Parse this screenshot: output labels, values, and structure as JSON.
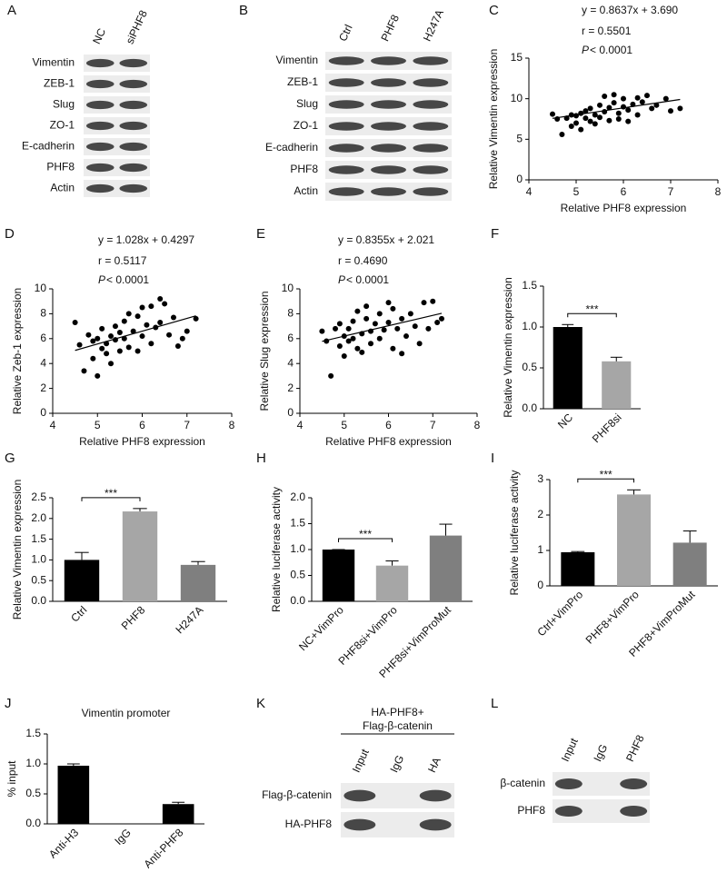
{
  "chart_data": [
    {
      "type": "scatter",
      "panel": "C",
      "equation": "y = 0.8637x + 3.690",
      "r_label": "r = 0.5501",
      "p_label": "P",
      "p_value": "< 0.0001",
      "fit": {
        "slope": 0.8637,
        "intercept": 3.69
      },
      "x_label": "Relative PHF8 expression",
      "y_label": "Relative Vimentin expression",
      "xlim": [
        4,
        8
      ],
      "xticks": [
        4,
        5,
        6,
        7,
        8
      ],
      "ylim": [
        0,
        15
      ],
      "yticks": [
        0,
        5,
        10,
        15
      ],
      "color": "#000000",
      "x": [
        4.5,
        4.6,
        4.7,
        4.8,
        4.9,
        4.9,
        5.0,
        5.0,
        5.1,
        5.1,
        5.2,
        5.2,
        5.3,
        5.3,
        5.4,
        5.4,
        5.5,
        5.5,
        5.6,
        5.6,
        5.7,
        5.7,
        5.8,
        5.8,
        5.9,
        5.9,
        6.0,
        6.0,
        6.1,
        6.1,
        6.2,
        6.3,
        6.3,
        6.4,
        6.5,
        6.6,
        6.7,
        6.9,
        7.0,
        7.2
      ],
      "values": [
        8.1,
        7.5,
        5.6,
        7.6,
        8.0,
        6.6,
        7.9,
        7.0,
        8.2,
        6.2,
        7.6,
        8.5,
        7.2,
        8.8,
        6.9,
        8.0,
        7.7,
        9.2,
        8.4,
        10.3,
        7.3,
        8.9,
        9.5,
        10.5,
        8.2,
        7.5,
        9.0,
        10.0,
        8.6,
        7.2,
        9.3,
        10.1,
        8.0,
        9.6,
        10.4,
        8.8,
        9.2,
        10.0,
        8.5,
        8.8
      ]
    },
    {
      "type": "scatter",
      "panel": "D",
      "equation": "y = 1.028x + 0.4297",
      "r_label": "r = 0.5117",
      "p_label": "P",
      "p_value": "< 0.0001",
      "fit": {
        "slope": 1.028,
        "intercept": 0.4297
      },
      "x_label": "Relative PHF8 expression",
      "y_label": "Relative Zeb-1 expression",
      "xlim": [
        4,
        8
      ],
      "xticks": [
        4,
        5,
        6,
        7,
        8
      ],
      "ylim": [
        0,
        10
      ],
      "yticks": [
        0,
        2,
        4,
        6,
        8,
        10
      ],
      "color": "#000000",
      "x": [
        4.5,
        4.6,
        4.7,
        4.8,
        4.9,
        4.9,
        5.0,
        5.0,
        5.1,
        5.1,
        5.2,
        5.2,
        5.3,
        5.3,
        5.4,
        5.4,
        5.5,
        5.5,
        5.6,
        5.6,
        5.7,
        5.7,
        5.8,
        5.9,
        5.9,
        6.0,
        6.0,
        6.1,
        6.2,
        6.2,
        6.3,
        6.4,
        6.4,
        6.5,
        6.6,
        6.7,
        6.8,
        6.9,
        7.0,
        7.2
      ],
      "values": [
        7.3,
        5.5,
        3.4,
        6.3,
        5.8,
        4.4,
        6.0,
        3.0,
        5.2,
        6.8,
        4.8,
        5.6,
        6.2,
        4.0,
        7.0,
        5.9,
        6.5,
        5.0,
        7.4,
        6.0,
        8.0,
        5.3,
        6.6,
        7.8,
        5.0,
        8.5,
        6.2,
        7.1,
        8.6,
        5.6,
        6.9,
        9.2,
        7.3,
        8.8,
        6.3,
        7.7,
        5.4,
        6.0,
        6.6,
        7.6
      ]
    },
    {
      "type": "scatter",
      "panel": "E",
      "equation": "y = 0.8355x + 2.021",
      "r_label": "r = 0.4690",
      "p_label": "P",
      "p_value": "< 0.0001",
      "fit": {
        "slope": 0.8355,
        "intercept": 2.021
      },
      "x_label": "Relative PHF8 expression",
      "y_label": "Relative Slug expression",
      "xlim": [
        4,
        8
      ],
      "xticks": [
        4,
        5,
        6,
        7,
        8
      ],
      "ylim": [
        0,
        10
      ],
      "yticks": [
        0,
        2,
        4,
        6,
        8,
        10
      ],
      "color": "#000000",
      "x": [
        4.5,
        4.6,
        4.7,
        4.8,
        4.9,
        4.9,
        5.0,
        5.0,
        5.1,
        5.1,
        5.2,
        5.2,
        5.3,
        5.3,
        5.4,
        5.4,
        5.5,
        5.5,
        5.6,
        5.6,
        5.7,
        5.8,
        5.8,
        5.9,
        6.0,
        6.0,
        6.1,
        6.1,
        6.2,
        6.3,
        6.3,
        6.4,
        6.5,
        6.6,
        6.7,
        6.8,
        6.9,
        7.0,
        7.1,
        7.2
      ],
      "values": [
        6.6,
        5.8,
        3.0,
        6.8,
        5.4,
        7.2,
        6.2,
        4.6,
        6.8,
        5.8,
        7.4,
        6.0,
        5.2,
        8.2,
        6.4,
        4.9,
        7.6,
        8.6,
        6.6,
        5.6,
        7.2,
        6.0,
        8.0,
        6.7,
        8.9,
        7.3,
        5.2,
        8.4,
        6.8,
        7.6,
        4.8,
        6.2,
        8.0,
        7.0,
        5.6,
        8.9,
        6.8,
        9.0,
        7.3,
        7.6
      ]
    },
    {
      "type": "bar",
      "panel": "F",
      "y_label": "Relative Vimentin expression",
      "categories": [
        "NC",
        "PHF8si"
      ],
      "values": [
        1.0,
        0.58
      ],
      "errors": [
        0.03,
        0.05
      ],
      "colors": [
        "#000000",
        "#a6a6a6"
      ],
      "significance": "***",
      "ylim": [
        0,
        1.5
      ],
      "yticks": [
        {
          "value": 0,
          "label": "0.0"
        },
        {
          "value": 0.5,
          "label": "0.5"
        },
        {
          "value": 1,
          "label": "1.0"
        },
        {
          "value": 1.5,
          "label": "1.5"
        }
      ]
    },
    {
      "type": "bar",
      "panel": "G",
      "y_label": "Relative Vimentin expression",
      "categories": [
        "Ctrl",
        "PHF8",
        "H247A"
      ],
      "values": [
        1.0,
        2.17,
        0.88
      ],
      "errors": [
        0.18,
        0.07,
        0.08
      ],
      "colors": [
        "#000000",
        "#a6a6a6",
        "#7f7f7f"
      ],
      "significance": "***",
      "ylim": [
        0,
        2.5
      ],
      "yticks": [
        {
          "value": 0,
          "label": "0.0"
        },
        {
          "value": 0.5,
          "label": "0.5"
        },
        {
          "value": 1,
          "label": "1.0"
        },
        {
          "value": 1.5,
          "label": "1.5"
        },
        {
          "value": 2,
          "label": "2.0"
        },
        {
          "value": 2.5,
          "label": "2.5"
        }
      ]
    },
    {
      "type": "bar",
      "panel": "H",
      "y_label": "Relative luciferase activity",
      "categories": [
        "NC+VimPro",
        "PHF8si+VimPro",
        "PHF8si+VimProMut"
      ],
      "values": [
        1.0,
        0.69,
        1.27
      ],
      "errors": [
        0,
        0.09,
        0.22
      ],
      "colors": [
        "#000000",
        "#a6a6a6",
        "#7f7f7f"
      ],
      "significance": "***",
      "ylim": [
        0,
        2
      ],
      "yticks": [
        {
          "value": 0,
          "label": "0.0"
        },
        {
          "value": 0.5,
          "label": "0.5"
        },
        {
          "value": 1,
          "label": "1.0"
        },
        {
          "value": 1.5,
          "label": "1.5"
        },
        {
          "value": 2,
          "label": "2.0"
        }
      ]
    },
    {
      "type": "bar",
      "panel": "I",
      "y_label": "Relative luciferase activity",
      "categories": [
        "Ctrl+VimPro",
        "PHF8+VimPro",
        "PHF8+VimProMut"
      ],
      "values": [
        0.95,
        2.58,
        1.22
      ],
      "errors": [
        0.02,
        0.13,
        0.33
      ],
      "colors": [
        "#000000",
        "#a6a6a6",
        "#7f7f7f"
      ],
      "significance": "***",
      "ylim": [
        0,
        3
      ],
      "yticks": [
        0,
        1,
        2,
        3
      ]
    },
    {
      "type": "bar",
      "panel": "J",
      "title": "Vimentin promoter",
      "y_label": "% input",
      "categories": [
        "Anti-H3",
        "IgG",
        "Anti-PHF8"
      ],
      "values": [
        0.97,
        0.0,
        0.33
      ],
      "errors": [
        0.03,
        0.0,
        0.03
      ],
      "colors": [
        "#000000",
        "#000000",
        "#000000"
      ],
      "ylim": [
        0,
        1.5
      ],
      "yticks": [
        {
          "value": 0,
          "label": "0.0"
        },
        {
          "value": 0.5,
          "label": "0.5"
        },
        {
          "value": 1,
          "label": "1.0"
        },
        {
          "value": 1.5,
          "label": "1.5"
        }
      ]
    }
  ],
  "blots": [
    {
      "panel": "A",
      "lanes": [
        "NC",
        "siPHF8"
      ],
      "rows": [
        "Vimentin",
        "ZEB-1",
        "Slug",
        "ZO-1",
        "E-cadherin",
        "PHF8",
        "Actin"
      ]
    },
    {
      "panel": "B",
      "lanes": [
        "Ctrl",
        "PHF8",
        "H247A"
      ],
      "rows": [
        "Vimentin",
        "ZEB-1",
        "Slug",
        "ZO-1",
        "E-cadherin",
        "PHF8",
        "Actin"
      ]
    },
    {
      "panel": "K",
      "header": [
        "HA-PHF8+",
        "Flag-β-catenin"
      ],
      "lanes": [
        "Input",
        "IgG",
        "HA"
      ],
      "rows": [
        "Flag-β-catenin",
        "HA-PHF8"
      ]
    },
    {
      "panel": "L",
      "lanes": [
        "Input",
        "IgG",
        "PHF8"
      ],
      "rows": [
        "β-catenin",
        "PHF8"
      ]
    }
  ]
}
